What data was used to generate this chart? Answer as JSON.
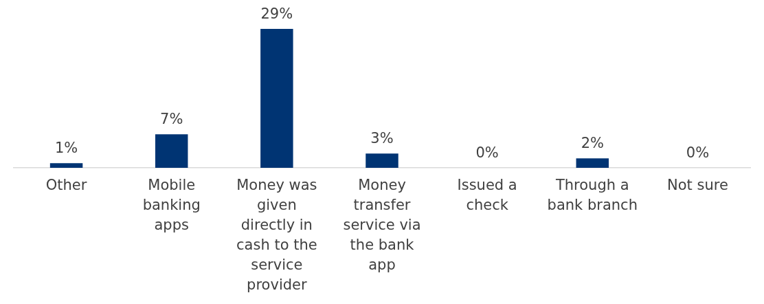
{
  "chart_data": {
    "type": "bar",
    "categories": [
      "Other",
      "Mobile banking apps",
      "Money was given directly in cash to the service provider",
      "Money transfer service via the bank app",
      "Issued a check",
      "Through a bank branch",
      "Not sure"
    ],
    "values": [
      1,
      7,
      29,
      3,
      0,
      2,
      0
    ],
    "value_labels": [
      "1%",
      "7%",
      "29%",
      "3%",
      "0%",
      "2%",
      "0%"
    ],
    "color": "#003473",
    "grid": false,
    "legend": false
  }
}
